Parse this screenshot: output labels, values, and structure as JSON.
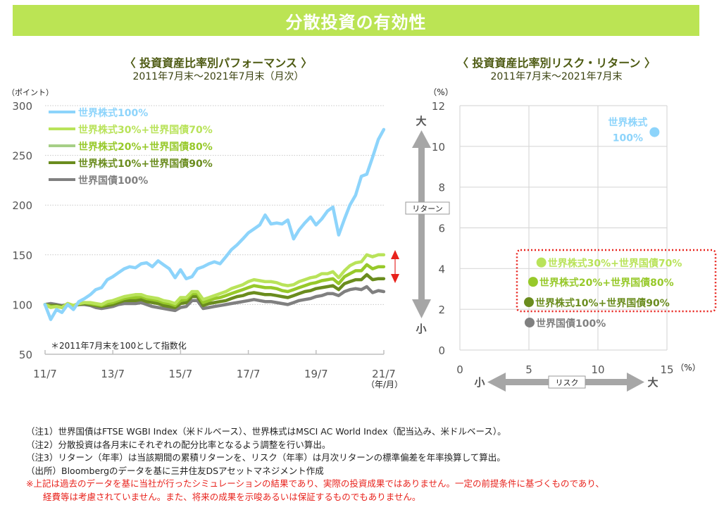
{
  "banner": {
    "title": "分散投資の有効性",
    "color": "#bbe454"
  },
  "colors": {
    "stock100": "#8dd4fb",
    "mix30": "#b9e35a",
    "mix20": "#97c92a",
    "mix10": "#6a8c1e",
    "bond100": "#808080",
    "highlight": "#e8221c",
    "arrow_gray": "#a6a6a6"
  },
  "chart_data": [
    {
      "type": "line",
      "title": "〈 投資資産比率別パフォーマンス 〉",
      "subtitle": "2011年7月末～2021年7月末（月次）",
      "ylabel": "（ポイント）",
      "xlabel": "（年/月）",
      "ylim": [
        50,
        300
      ],
      "yticks": [
        "300",
        "250",
        "200",
        "150",
        "100",
        "50"
      ],
      "ytick_values": [
        300,
        250,
        200,
        150,
        100,
        50
      ],
      "xticks": [
        "11/7",
        "13/7",
        "15/7",
        "17/7",
        "19/7",
        "21/7"
      ],
      "xlim": [
        2011.583,
        2021.583
      ],
      "grid": "horizontal-dotted",
      "legend_position": "top-left",
      "annotation": "＊2011年7月末を100として指数化",
      "x": [
        2011.58,
        2011.75,
        2011.92,
        2012.08,
        2012.25,
        2012.42,
        2012.58,
        2012.75,
        2012.92,
        2013.08,
        2013.25,
        2013.42,
        2013.58,
        2013.75,
        2013.92,
        2014.08,
        2014.25,
        2014.42,
        2014.58,
        2014.75,
        2014.92,
        2015.08,
        2015.25,
        2015.42,
        2015.58,
        2015.75,
        2015.92,
        2016.08,
        2016.25,
        2016.42,
        2016.58,
        2016.75,
        2016.92,
        2017.08,
        2017.25,
        2017.42,
        2017.58,
        2017.75,
        2017.92,
        2018.08,
        2018.25,
        2018.42,
        2018.58,
        2018.75,
        2018.92,
        2019.08,
        2019.25,
        2019.42,
        2019.58,
        2019.75,
        2019.92,
        2020.08,
        2020.25,
        2020.42,
        2020.58,
        2020.75,
        2020.92,
        2021.08,
        2021.25,
        2021.42,
        2021.58
      ],
      "series": [
        {
          "name": "世界株式100%",
          "color_key": "stock100",
          "values": [
            100,
            85,
            95,
            92,
            100,
            95,
            103,
            106,
            110,
            115,
            117,
            125,
            128,
            132,
            136,
            138,
            137,
            141,
            142,
            138,
            144,
            140,
            136,
            127,
            135,
            126,
            128,
            136,
            138,
            141,
            143,
            141,
            148,
            155,
            160,
            166,
            172,
            176,
            180,
            190,
            181,
            182,
            181,
            185,
            166,
            175,
            182,
            188,
            180,
            186,
            194,
            198,
            170,
            186,
            200,
            210,
            229,
            231,
            248,
            266,
            276
          ]
        },
        {
          "name": "世界株式30%+世界国債70%",
          "color_key": "mix30",
          "values": [
            100,
            97,
            98,
            97,
            101,
            99,
            101,
            102,
            102,
            101,
            100,
            103,
            104,
            106,
            108,
            109,
            110,
            110,
            108,
            107,
            106,
            104,
            103,
            101,
            107,
            107,
            113,
            113,
            105,
            107,
            109,
            111,
            113,
            116,
            118,
            120,
            123,
            125,
            124,
            123,
            123,
            122,
            120,
            119,
            120,
            123,
            125,
            127,
            128,
            131,
            131,
            133,
            127,
            134,
            139,
            142,
            143,
            150,
            148,
            150,
            150
          ]
        },
        {
          "name": "世界株式20%+世界国債80%",
          "color_key": "mix20",
          "values": [
            100,
            98,
            98,
            97,
            101,
            99,
            101,
            102,
            101,
            100,
            99,
            101,
            102,
            104,
            106,
            107,
            107,
            108,
            106,
            105,
            104,
            102,
            101,
            99,
            104,
            105,
            111,
            111,
            102,
            104,
            106,
            107,
            109,
            111,
            113,
            115,
            117,
            119,
            118,
            117,
            117,
            116,
            114,
            113,
            115,
            117,
            119,
            121,
            122,
            124,
            125,
            126,
            121,
            128,
            131,
            134,
            134,
            140,
            136,
            138,
            138
          ]
        },
        {
          "name": "世界株式10%+世界国債90%",
          "color_key": "mix10",
          "values": [
            100,
            99,
            99,
            98,
            100,
            99,
            100,
            101,
            100,
            99,
            98,
            99,
            100,
            102,
            104,
            104,
            104,
            105,
            103,
            102,
            101,
            99,
            98,
            97,
            101,
            102,
            108,
            108,
            99,
            101,
            102,
            103,
            104,
            106,
            108,
            109,
            111,
            112,
            111,
            110,
            110,
            109,
            108,
            107,
            109,
            111,
            113,
            114,
            116,
            117,
            118,
            119,
            115,
            121,
            123,
            125,
            125,
            130,
            125,
            126,
            126
          ]
        },
        {
          "name": "世界国債100%",
          "color_key": "bond100",
          "values": [
            100,
            101,
            100,
            99,
            100,
            99,
            100,
            100,
            99,
            97,
            96,
            97,
            98,
            100,
            101,
            101,
            101,
            102,
            100,
            98,
            97,
            96,
            95,
            94,
            97,
            98,
            104,
            104,
            96,
            97,
            98,
            99,
            100,
            101,
            102,
            103,
            104,
            105,
            104,
            103,
            103,
            102,
            101,
            100,
            102,
            104,
            105,
            106,
            108,
            109,
            111,
            111,
            109,
            113,
            115,
            116,
            115,
            118,
            112,
            114,
            113
          ]
        }
      ]
    },
    {
      "type": "scatter",
      "title": "〈 投資資産比率別リスク・リターン 〉",
      "subtitle": "2011年7月末～2021年7月末",
      "xlabel": "リスク",
      "ylabel": "リターン",
      "x_unit": "（%）",
      "y_unit": "（%）",
      "xlim": [
        0,
        15
      ],
      "ylim": [
        0,
        12
      ],
      "xticks": [
        "0",
        "5",
        "10",
        "15"
      ],
      "xtick_values": [
        0,
        5,
        10,
        15
      ],
      "yticks": [
        "12",
        "10",
        "8",
        "6",
        "4",
        "2",
        "0"
      ],
      "ytick_values": [
        12,
        10,
        8,
        6,
        4,
        2,
        0
      ],
      "x_small": "小",
      "x_large": "大",
      "y_small": "小",
      "y_large": "大",
      "grid": "both",
      "points": [
        {
          "name": "世界株式100%",
          "label_lines": [
            "世界株式",
            "100%"
          ],
          "risk": 14.1,
          "return": 10.7,
          "color_key": "stock100"
        },
        {
          "name": "世界株式30%+世界国債70%",
          "risk": 5.9,
          "return": 4.3,
          "color_key": "mix30"
        },
        {
          "name": "世界株式20%+世界国債80%",
          "risk": 5.3,
          "return": 3.35,
          "color_key": "mix20"
        },
        {
          "name": "世界株式10%+世界国債90%",
          "risk": 5.0,
          "return": 2.35,
          "color_key": "mix10"
        },
        {
          "name": "世界国債100%",
          "risk": 5.05,
          "return": 1.35,
          "color_key": "bond100"
        }
      ],
      "highlight_group": [
        "世界株式30%+世界国債70%",
        "世界株式20%+世界国債80%",
        "世界株式10%+世界国債90%"
      ]
    }
  ],
  "notes": [
    "（注1）世界国債はFTSE WGBI Index（米ドルベース）、世界株式はMSCI AC World Index（配当込み、米ドルベース）。",
    "（注2）分散投資は各月末にそれぞれの配分比率となるよう調整を行い算出。",
    "（注3）リターン（年率）は当該期間の累積リターンを、リスク（年率）は月次リターンの標準偏差を年率換算して算出。",
    "（出所）Bloombergのデータを基に三井住友DSアセットマネジメント作成"
  ],
  "disclaimer": [
    "※上記は過去のデータを基に当社が行ったシミュレーションの結果であり、実際の投資成果ではありません。一定の前提条件に基づくものであり、",
    "経費等は考慮されていません。また、将来の成果を示唆あるいは保証するものでもありません。"
  ]
}
